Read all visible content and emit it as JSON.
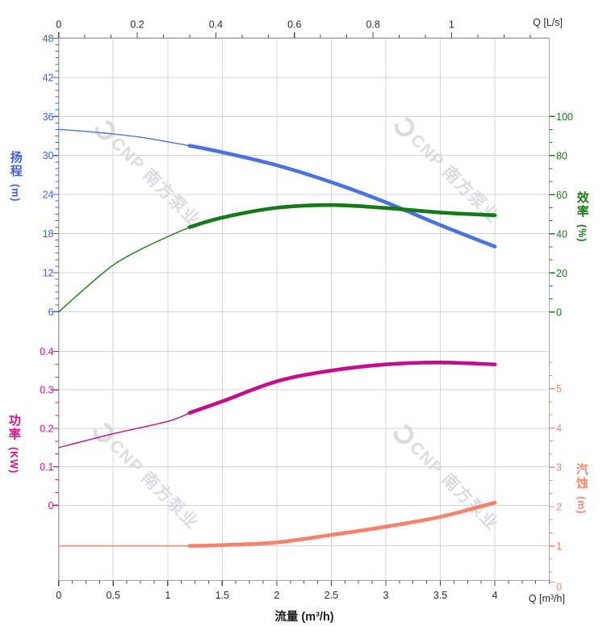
{
  "page": {
    "background": "#ffffff"
  },
  "watermark": {
    "text": "CNP 南方泵业",
    "color": "#c6c6cc",
    "opacity": 0.6
  },
  "axes_titles": {
    "head": {
      "title": "扬程",
      "unit": "(m)"
    },
    "power": {
      "title": "功率",
      "unit": "(KW)"
    },
    "efficiency": {
      "title": "效率",
      "unit": "(%)"
    },
    "npsh": {
      "title": "汽蚀",
      "unit": "(m)"
    },
    "flow": {
      "title": "流量 (m³/h)"
    },
    "top_unit": "Q [L/s]",
    "bottom_unit": "Q [m³/h]"
  },
  "chart_data": {
    "type": "line",
    "title": "",
    "grid": true,
    "operating_range_x": [
      1.2,
      4.0
    ],
    "axes": {
      "flow_bottom": {
        "label": "流量 (m³/h)",
        "unit_label": "Q [m³/h]",
        "min": 0,
        "max": 4.5,
        "major_ticks": [
          0,
          0.5,
          1,
          1.5,
          2,
          2.5,
          3,
          3.5,
          4
        ],
        "minor_step": 0.125,
        "color": "#2b2b2b"
      },
      "flow_top": {
        "unit_label": "Q [L/s]",
        "min": 0,
        "max": 1.25,
        "major_ticks": [
          0,
          0.2,
          0.4,
          0.6,
          0.8,
          1
        ],
        "minor_divisions": 3,
        "color": "#2b2b2b"
      },
      "head": {
        "label": "扬程 (m)",
        "side": "left",
        "min": 6,
        "max": 48,
        "major_ticks": [
          48,
          42,
          36,
          30,
          24,
          18,
          12,
          6
        ],
        "minor_step": 1,
        "color": "#3d5ee1"
      },
      "power": {
        "label": "功率 (KW)",
        "side": "left",
        "min": 0,
        "max": 0.4,
        "major_ticks": [
          0.4,
          0.3,
          0.2,
          0.1,
          0
        ],
        "minor_divisions": 3,
        "color": "#d4108e"
      },
      "efficiency": {
        "label": "效率 (%)",
        "side": "right",
        "min": 0,
        "max": 100,
        "major_ticks": [
          100,
          80,
          60,
          40,
          20,
          0
        ],
        "minor_divisions": 3,
        "color": "#1c781c"
      },
      "npsh": {
        "label": "汽蚀 (m)",
        "side": "right",
        "min": 0,
        "max": 5.67,
        "major_ticks": [
          5,
          4,
          3,
          2,
          1,
          0
        ],
        "minor_divisions": 3,
        "color": "#f6886f"
      }
    },
    "series": [
      {
        "name": "head",
        "label": "扬程",
        "axis": "head",
        "color": "#4a72e0",
        "split_x": 1.2,
        "x": [
          0,
          0.25,
          0.5,
          0.75,
          1,
          1.2,
          1.5,
          2,
          2.5,
          3,
          3.5,
          4
        ],
        "y": [
          34.0,
          33.7,
          33.3,
          32.8,
          32.1,
          31.5,
          30.5,
          28.5,
          25.9,
          22.8,
          19.3,
          16.0
        ]
      },
      {
        "name": "efficiency",
        "label": "效率",
        "axis": "efficiency",
        "color": "#157a15",
        "split_x": 1.2,
        "x": [
          0,
          0.25,
          0.5,
          0.75,
          1,
          1.2,
          1.5,
          2,
          2.5,
          3,
          3.5,
          4
        ],
        "y": [
          0,
          12.5,
          24,
          32,
          38.5,
          43.4,
          48.3,
          53.3,
          54.7,
          53.2,
          50.9,
          49.5
        ]
      },
      {
        "name": "power",
        "label": "功率",
        "axis": "power",
        "color": "#c60d8d",
        "split_x": 1.2,
        "x": [
          0,
          0.5,
          1,
          1.2,
          1.5,
          2,
          2.5,
          3,
          3.5,
          4
        ],
        "y": [
          0.15,
          0.186,
          0.218,
          0.24,
          0.27,
          0.322,
          0.35,
          0.366,
          0.371,
          0.366
        ]
      },
      {
        "name": "npsh",
        "label": "汽蚀",
        "axis": "npsh",
        "color": "#f5836b",
        "split_x": 1.2,
        "x": [
          0,
          0.5,
          1,
          1.2,
          1.5,
          2,
          2.5,
          3,
          3.5,
          4
        ],
        "y": [
          1.0,
          1.0,
          1.0,
          1.0,
          1.02,
          1.09,
          1.28,
          1.49,
          1.74,
          2.1
        ]
      }
    ]
  }
}
